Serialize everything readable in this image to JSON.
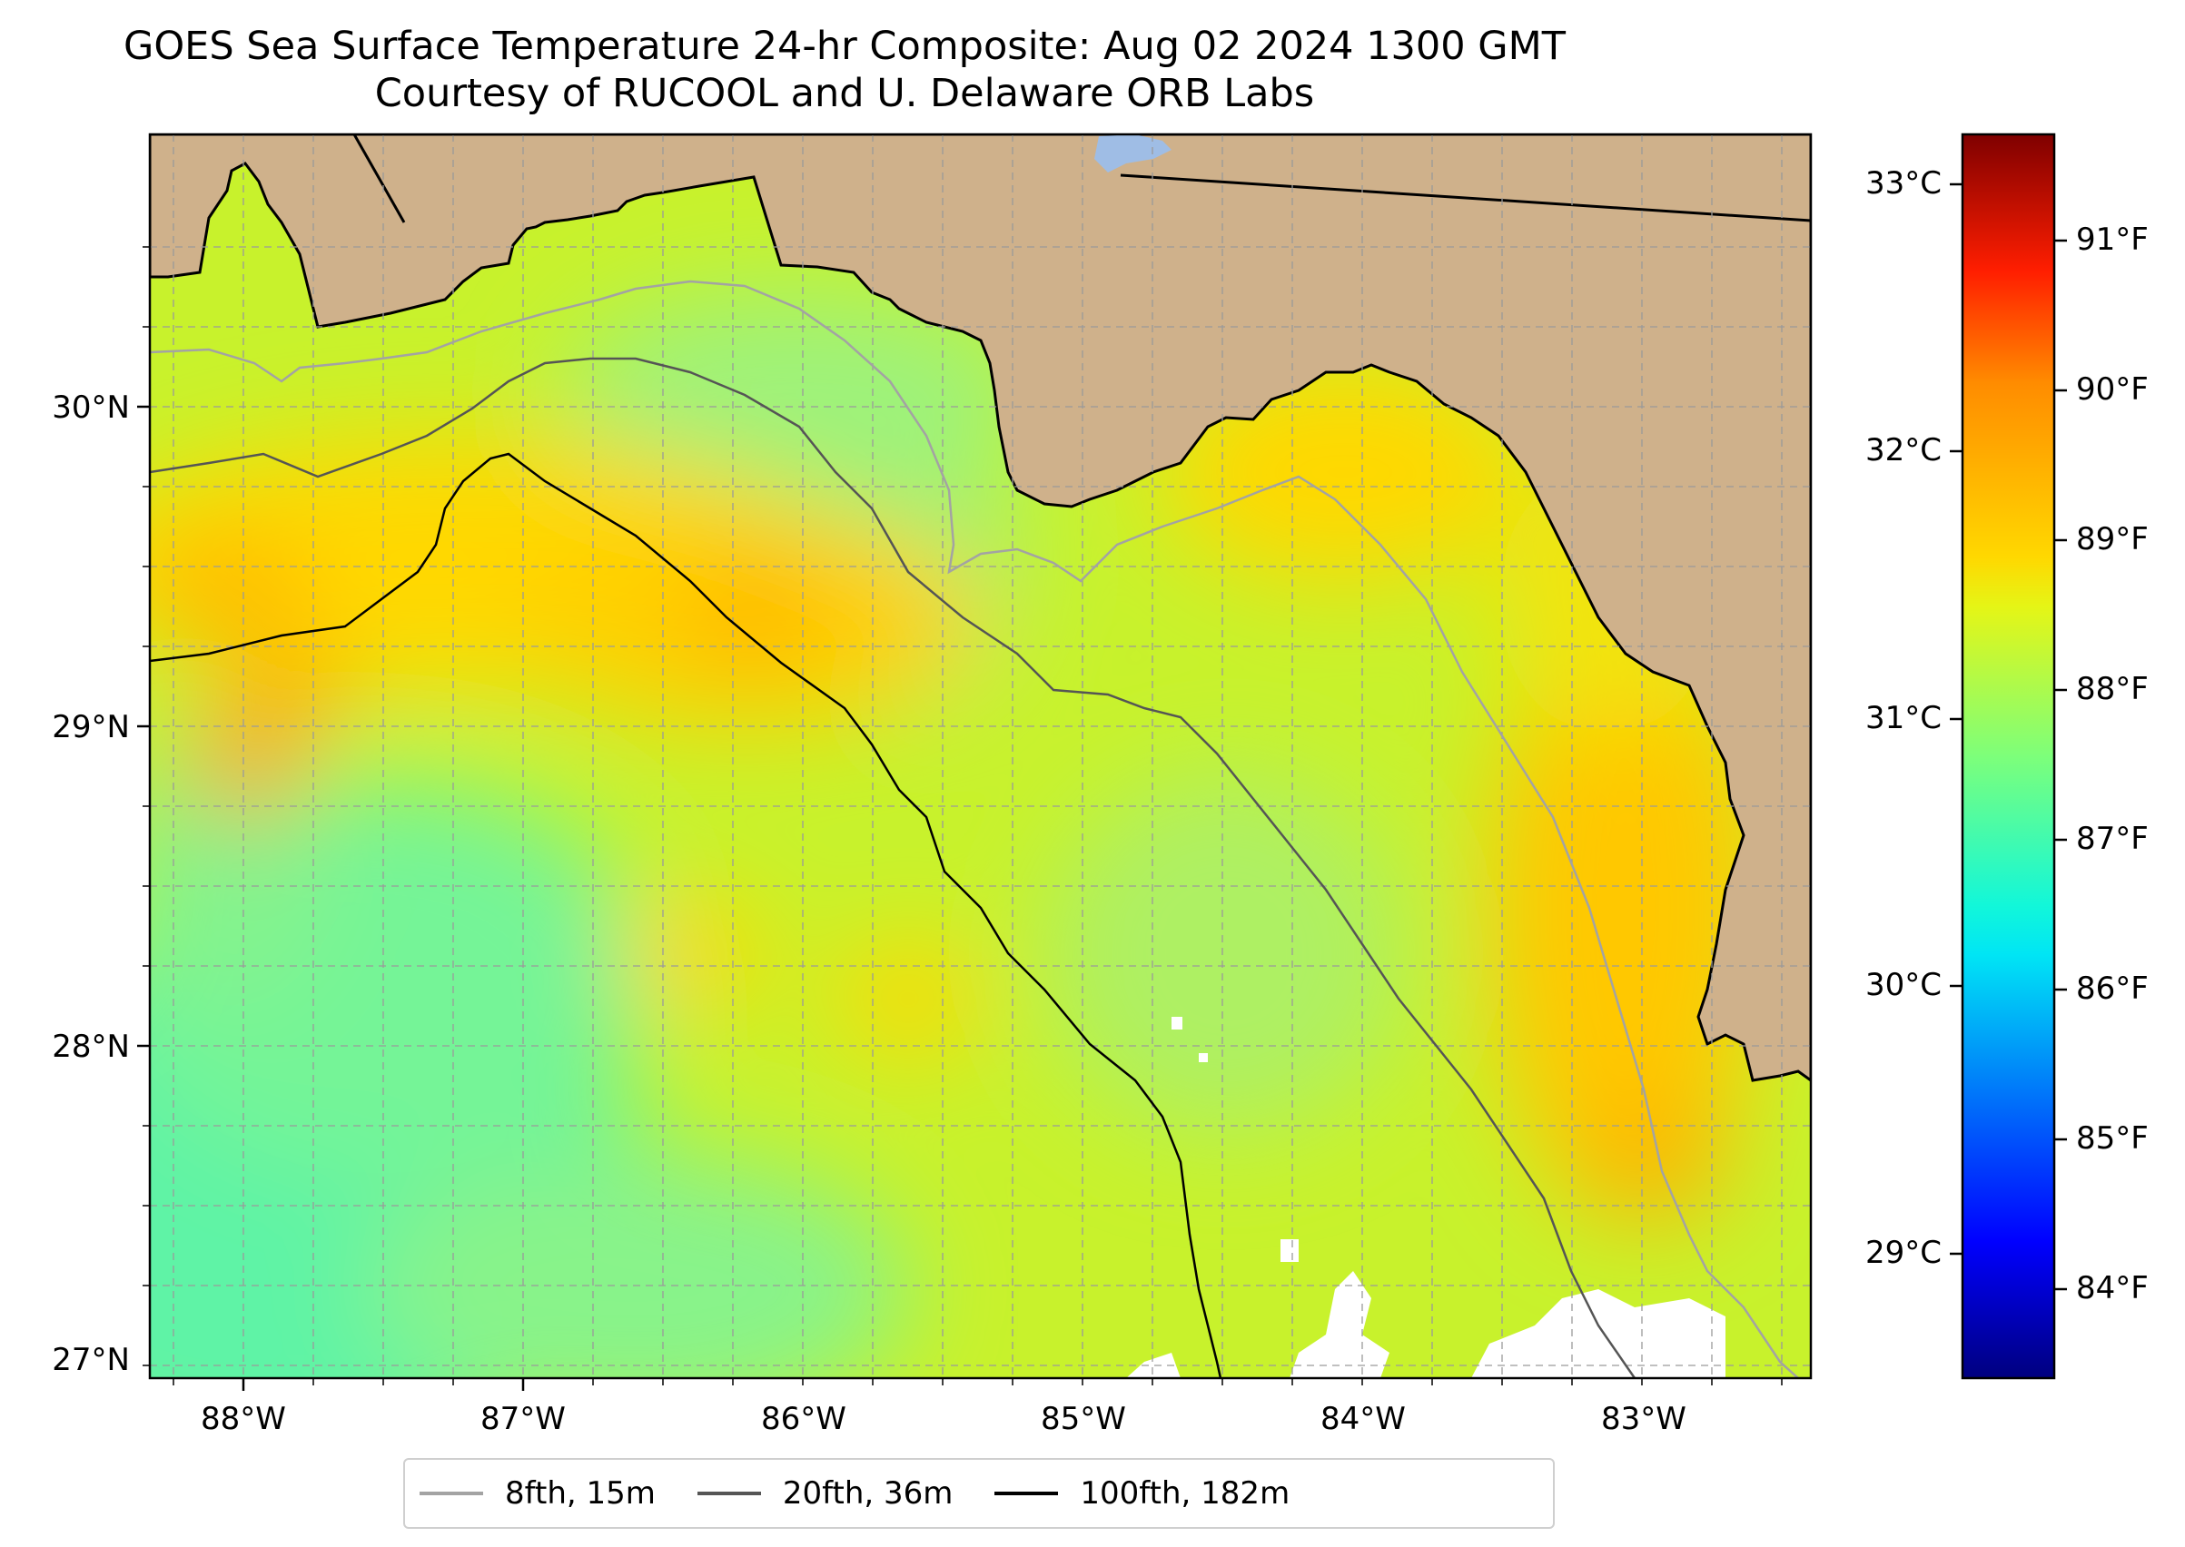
{
  "title_line1": "GOES Sea Surface Temperature 24-hr Composite: Aug 02 2024 1300 GMT",
  "title_line2": "Courtesy of RUCOOL and U. Delaware ORB Labs",
  "colors": {
    "land": "#cfb18b",
    "ocean_cool": "#5ff3a6",
    "ocean_mid": "#c9f52e",
    "ocean_warm": "#ffd200",
    "ocean_hot": "#ffa300",
    "no_data": "#ffffff",
    "coastline": "#000000",
    "lake": "#9fbde5"
  },
  "lon_labels": [
    "88°W",
    "87°W",
    "86°W",
    "85°W",
    "84°W",
    "83°W"
  ],
  "lat_labels": [
    "30°N",
    "29°N",
    "28°N",
    "27°N"
  ],
  "colorbar": {
    "celsius": [
      "33°C",
      "32°C",
      "31°C",
      "30°C",
      "29°C"
    ],
    "fahrenheit": [
      "91°F",
      "90°F",
      "89°F",
      "88°F",
      "87°F",
      "86°F",
      "85°F",
      "84°F"
    ],
    "colormap": "jet"
  },
  "legend": [
    {
      "label": "8fth, 15m",
      "color": "#a3a3a3"
    },
    {
      "label": "20fth, 36m",
      "color": "#555555"
    },
    {
      "label": "100fth, 182m",
      "color": "#000000"
    }
  ]
}
